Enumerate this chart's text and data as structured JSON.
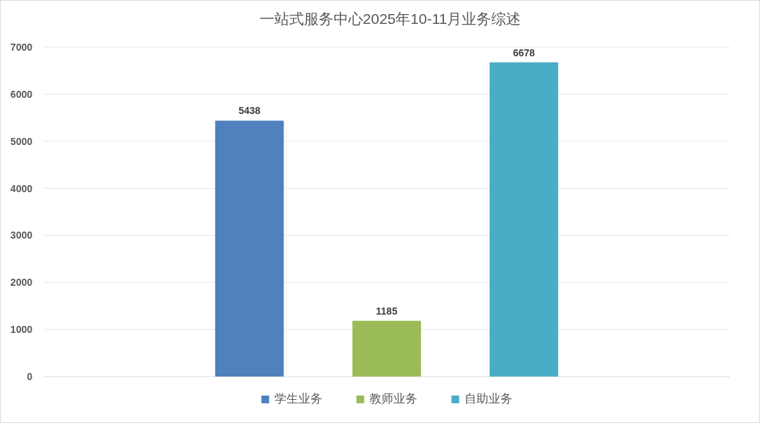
{
  "chart_data": {
    "type": "bar",
    "title": "一站式服务中心2025年10-11月业务综述",
    "categories": [
      null
    ],
    "series": [
      {
        "name": "学生业务",
        "color": "#4f81bd",
        "values": [
          5438
        ]
      },
      {
        "name": "教师业务",
        "color": "#9bbb59",
        "values": [
          1185
        ]
      },
      {
        "name": "自助业务",
        "color": "#4bacc6",
        "values": [
          6678
        ]
      }
    ],
    "ylim": [
      0,
      7000
    ],
    "yticks": [
      0,
      1000,
      2000,
      3000,
      4000,
      5000,
      6000,
      7000
    ],
    "grid": "y",
    "legend": "bottom",
    "data_labels": true
  }
}
